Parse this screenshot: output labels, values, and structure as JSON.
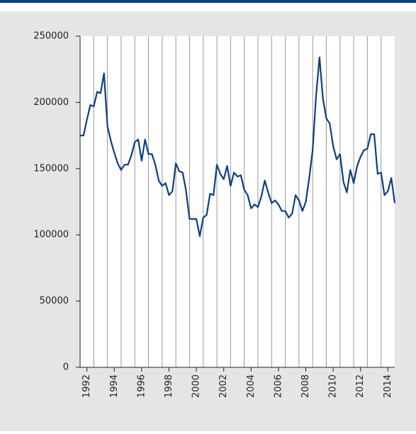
{
  "chart_data": {
    "type": "line",
    "x": [
      1992,
      1992.25,
      1992.5,
      1992.75,
      1993,
      1993.25,
      1993.5,
      1993.75,
      1994,
      1994.25,
      1994.5,
      1994.75,
      1995,
      1995.25,
      1995.5,
      1995.75,
      1996,
      1996.25,
      1996.5,
      1996.75,
      1997,
      1997.25,
      1997.5,
      1997.75,
      1998,
      1998.25,
      1998.5,
      1998.75,
      1999,
      1999.25,
      1999.5,
      1999.75,
      2000,
      2000.25,
      2000.5,
      2000.75,
      2001,
      2001.25,
      2001.5,
      2001.75,
      2002,
      2002.25,
      2002.5,
      2002.75,
      2003,
      2003.25,
      2003.5,
      2003.75,
      2004,
      2004.25,
      2004.5,
      2004.75,
      2005,
      2005.25,
      2005.5,
      2005.75,
      2006,
      2006.25,
      2006.5,
      2006.75,
      2007,
      2007.25,
      2007.5,
      2007.75,
      2008,
      2008.25,
      2008.5,
      2008.75,
      2009,
      2009.25,
      2009.5,
      2009.75,
      2010,
      2010.25,
      2010.5,
      2010.75,
      2011,
      2011.25,
      2011.5,
      2011.75,
      2012,
      2012.25,
      2012.5,
      2012.75,
      2013,
      2013.25,
      2013.5,
      2013.75,
      2014,
      2014.25,
      2014.5,
      2014.75,
      2015
    ],
    "series": [
      {
        "color": "#0b3f85",
        "values": [
          175000,
          175000,
          187000,
          198000,
          197000,
          208000,
          207000,
          222000,
          182000,
          171000,
          162000,
          154000,
          149000,
          153000,
          153000,
          160000,
          170000,
          172000,
          156000,
          172000,
          161000,
          161000,
          153000,
          141000,
          137000,
          139000,
          130000,
          133000,
          154000,
          148000,
          147000,
          133000,
          112000,
          112000,
          112000,
          99000,
          113000,
          115000,
          131000,
          130000,
          153000,
          146000,
          142000,
          152000,
          137000,
          147000,
          144000,
          145000,
          134000,
          130000,
          120000,
          123000,
          121000,
          129000,
          141000,
          132000,
          124000,
          126000,
          123000,
          118000,
          118000,
          113000,
          116000,
          130000,
          126000,
          118000,
          125000,
          143000,
          164000,
          205000,
          234000,
          203000,
          188000,
          184000,
          167000,
          157000,
          161000,
          140000,
          132000,
          149000,
          139000,
          152000,
          159000,
          164000,
          165000,
          176000,
          176000,
          146000,
          147000,
          130000,
          133000,
          143000,
          124000
        ]
      }
    ],
    "xlim": [
      1992,
      2015
    ],
    "xticks": [
      {
        "value": 1992.5,
        "label": "1992"
      },
      {
        "value": 1994.5,
        "label": "1994"
      },
      {
        "value": 1996.5,
        "label": "1996"
      },
      {
        "value": 1998.5,
        "label": "1998"
      },
      {
        "value": 2000.5,
        "label": "2000"
      },
      {
        "value": 2002.5,
        "label": "2002"
      },
      {
        "value": 2004.5,
        "label": "2004"
      },
      {
        "value": 2006.5,
        "label": "2006"
      },
      {
        "value": 2008.5,
        "label": "2008"
      },
      {
        "value": 2010.5,
        "label": "2010"
      },
      {
        "value": 2012.5,
        "label": "2012"
      },
      {
        "value": 2014.5,
        "label": "2014"
      }
    ],
    "xgridlines": [
      1993,
      1994,
      1995,
      1996,
      1997,
      1998,
      1999,
      2000,
      2001,
      2002,
      2003,
      2004,
      2005,
      2006,
      2007,
      2008,
      2009,
      2010,
      2011,
      2012,
      2013,
      2014
    ],
    "ylim": [
      0,
      250000
    ],
    "yticks": [
      0,
      50000,
      100000,
      150000,
      200000,
      250000
    ],
    "grid": true
  }
}
